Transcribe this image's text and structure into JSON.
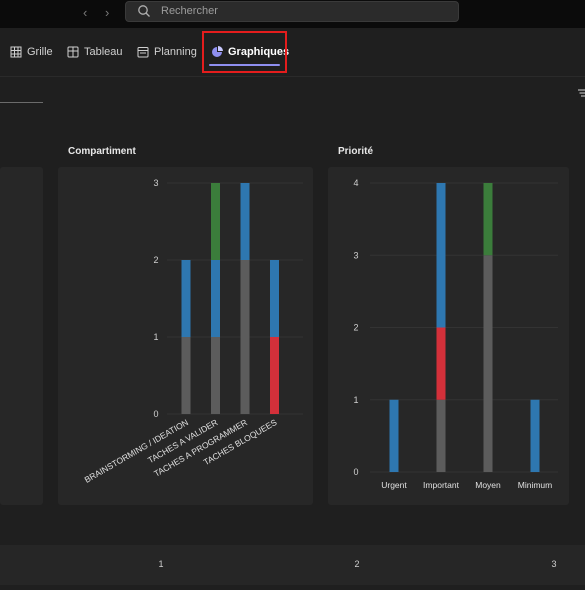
{
  "search": {
    "placeholder": "Rechercher"
  },
  "tabs": [
    {
      "label": "Grille",
      "icon": "grid-icon"
    },
    {
      "label": "Tableau",
      "icon": "board-icon"
    },
    {
      "label": "Planning",
      "icon": "calendar-icon"
    },
    {
      "label": "Graphiques",
      "icon": "pie-chart-icon",
      "active": true
    }
  ],
  "colors": {
    "blue": "#2e77b0",
    "green": "#3b7d3b",
    "red": "#d3303a",
    "gray": "#5c5c5c"
  },
  "chart_data": [
    {
      "type": "bar",
      "stacked": true,
      "title": "Compartiment",
      "categories": [
        "BRAINSTORMING / IDEATION",
        "TACHES A VALIDER",
        "TACHES A PROGRAMMER",
        "TACHES BLOQUEES"
      ],
      "ylim": [
        0,
        3
      ],
      "yticks": [
        "0",
        "1",
        "2",
        "3"
      ],
      "series": [
        {
          "color": "#5c5c5c",
          "values": [
            1,
            1,
            2,
            0
          ]
        },
        {
          "color": "#d3303a",
          "values": [
            0,
            0,
            0,
            1
          ]
        },
        {
          "color": "#2e77b0",
          "values": [
            1,
            1,
            1,
            1
          ]
        },
        {
          "color": "#3b7d3b",
          "values": [
            0,
            1,
            0,
            0
          ]
        }
      ]
    },
    {
      "type": "bar",
      "stacked": true,
      "title": "Priorité",
      "categories": [
        "Urgent",
        "Important",
        "Moyen",
        "Minimum"
      ],
      "ylim": [
        0,
        4
      ],
      "yticks": [
        "0",
        "1",
        "2",
        "3",
        "4"
      ],
      "series": [
        {
          "color": "#5c5c5c",
          "values": [
            0,
            1,
            3,
            0
          ]
        },
        {
          "color": "#d3303a",
          "values": [
            0,
            1,
            0,
            0
          ]
        },
        {
          "color": "#2e77b0",
          "values": [
            1,
            2,
            0,
            1
          ]
        },
        {
          "color": "#3b7d3b",
          "values": [
            0,
            0,
            1,
            0
          ]
        }
      ]
    }
  ],
  "bottom_axis": {
    "ticks": [
      "1",
      "2",
      "3"
    ]
  }
}
